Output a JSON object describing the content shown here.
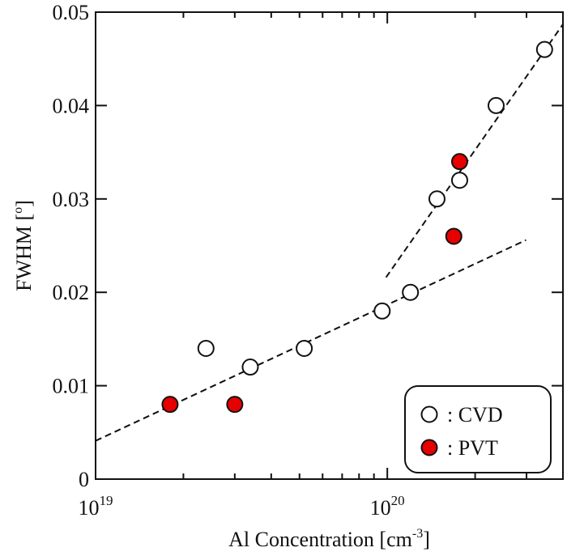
{
  "chart_data": {
    "type": "scatter",
    "x_label": {
      "text": "Al Concentration  [cm",
      "sup": "-3",
      "end": "]"
    },
    "y_label": {
      "text": "FWHM  [",
      "sup": "o",
      "end": "]"
    },
    "xscale": "log",
    "xlim": [
      1e+19,
      4e+20
    ],
    "ylim": [
      0,
      0.05
    ],
    "xticks": [
      {
        "value": 1e+19,
        "label": "10",
        "exponent": "19"
      },
      {
        "value": 1e+20,
        "label": "10",
        "exponent": "20"
      }
    ],
    "xminorticks": [
      2e+19,
      3e+19,
      4e+19,
      5e+19,
      6e+19,
      7e+19,
      8e+19,
      9e+19,
      2e+20,
      3e+20,
      4e+20
    ],
    "yticks": [
      0,
      0.01,
      0.02,
      0.03,
      0.04,
      0.05
    ],
    "legend": "lower right",
    "series": [
      {
        "name": ": CVD",
        "color": "#ffffff",
        "marker": "open",
        "x": [
          2.39e+19,
          3.39e+19,
          5.19e+19,
          9.6e+19,
          1.2e+20,
          1.48e+20,
          1.77e+20,
          2.36e+20,
          3.46e+20
        ],
        "values": [
          0.014,
          0.012,
          0.014,
          0.018,
          0.02,
          0.03,
          0.032,
          0.04,
          0.046
        ]
      },
      {
        "name": ": PVT",
        "color": "#e60000",
        "marker": "filled",
        "x": [
          1.8e+19,
          3e+19,
          1.69e+20,
          1.77e+20
        ],
        "values": [
          0.008,
          0.008,
          0.026,
          0.034
        ]
      }
    ],
    "fits": [
      {
        "x": [
          1e+19,
          2.99e+20
        ],
        "values": [
          0.0041,
          0.0256
        ]
      },
      {
        "x": [
          9.9e+19,
          4e+20
        ],
        "values": [
          0.0216,
          0.0487
        ]
      }
    ]
  }
}
